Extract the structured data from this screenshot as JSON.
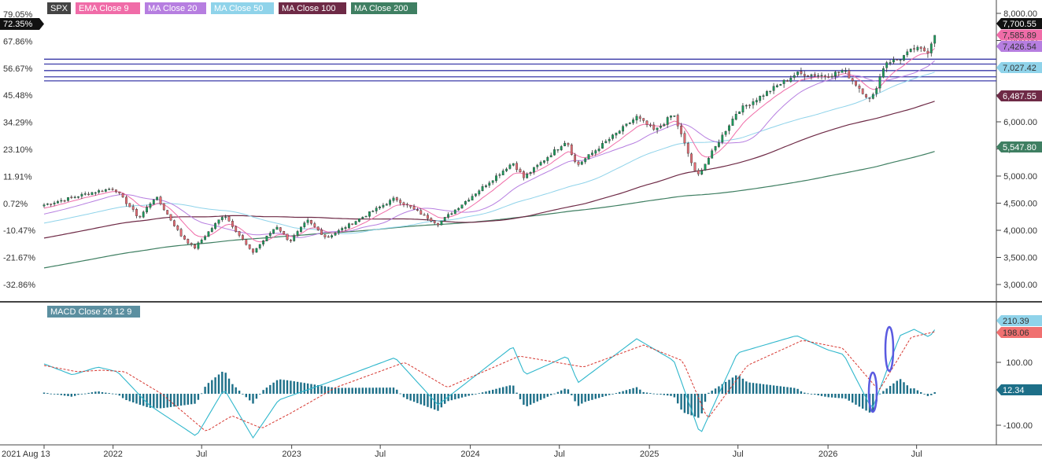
{
  "legend": {
    "main": [
      {
        "label": "SPX",
        "color": "#444444",
        "text_color": "#ffffff"
      },
      {
        "label": "EMA  Close 9",
        "color": "#f06ca8",
        "text_color": "#ffffff"
      },
      {
        "label": "MA  Close 20",
        "color": "#b67ee0",
        "text_color": "#ffffff"
      },
      {
        "label": "MA  Close 50",
        "color": "#8fd3ea",
        "text_color": "#ffffff"
      },
      {
        "label": "MA  Close 100",
        "color": "#6e2a46",
        "text_color": "#ffffff"
      },
      {
        "label": "MA  Close 200",
        "color": "#3f7f62",
        "text_color": "#ffffff"
      }
    ],
    "macd": {
      "label": "MACD  Close 26 12 9",
      "color": "#5b8fa0",
      "text_color": "#ffffff"
    }
  },
  "colors": {
    "up": "#1a9c5c",
    "down": "#e56b73",
    "wick": "#333333",
    "hline": "#3a3aa8",
    "ellipse": "#5a5ae0",
    "macd_line": "#2fb7cc",
    "signal_line": "#d6362f",
    "hist": "#1d6f88",
    "ema9": "#f06ca8",
    "ma20": "#b67ee0",
    "ma50": "#8fd3ea",
    "ma100": "#6e2a46",
    "ma200": "#3f7f62"
  },
  "chart_data": [
    {
      "type": "candlestick",
      "title": "SPX",
      "x_start": "2021-08-13",
      "x_end": "2026-08-14",
      "x_ticks": [
        {
          "date": "2021-08-13",
          "label": "2021 Aug 13"
        },
        {
          "date": "2022-01-01",
          "label": "2022"
        },
        {
          "date": "2022-07-01",
          "label": "Jul"
        },
        {
          "date": "2023-01-01",
          "label": "2023"
        },
        {
          "date": "2023-07-01",
          "label": "Jul"
        },
        {
          "date": "2024-01-01",
          "label": "2024"
        },
        {
          "date": "2024-07-01",
          "label": "Jul"
        },
        {
          "date": "2025-01-01",
          "label": "2025"
        },
        {
          "date": "2025-07-01",
          "label": "Jul"
        },
        {
          "date": "2026-01-01",
          "label": "2026"
        },
        {
          "date": "2026-07-01",
          "label": "Jul"
        }
      ],
      "y_ticks_right": [
        "3,000.00",
        "3,500.00",
        "4,000.00",
        "4,500.00",
        "5,000.00",
        "5,500.00",
        "6,000.00",
        "6,500.00",
        "7,000.00",
        "7,500.00",
        "8,000.00"
      ],
      "y_ticks_left": [
        "79.05%",
        "67.86%",
        "56.67%",
        "45.48%",
        "34.29%",
        "23.10%",
        "11.91%",
        "0.72%",
        "-10.47%",
        "-21.67%",
        "-32.86%"
      ],
      "y_left_current": "72.35%",
      "ylim": [
        2700,
        8050
      ],
      "horizontal_levels": [
        7155,
        7065,
        6945,
        6830,
        6755
      ],
      "last_values": {
        "price": "7,700.55",
        "ema9": "7,585.89",
        "ma20": "7,426.54",
        "ma50": "7,027.42",
        "ma100": "6,487.55",
        "ma200": "5,547.80"
      },
      "price_anchors": [
        [
          "2021-08-13",
          4470
        ],
        [
          "2021-11-15",
          4690
        ],
        [
          "2022-01-03",
          4780
        ],
        [
          "2022-02-23",
          4230
        ],
        [
          "2022-03-29",
          4630
        ],
        [
          "2022-05-20",
          3900
        ],
        [
          "2022-06-16",
          3670
        ],
        [
          "2022-08-16",
          4300
        ],
        [
          "2022-10-12",
          3580
        ],
        [
          "2022-12-01",
          4080
        ],
        [
          "2022-12-28",
          3790
        ],
        [
          "2023-02-02",
          4180
        ],
        [
          "2023-03-13",
          3860
        ],
        [
          "2023-07-31",
          4590
        ],
        [
          "2023-10-27",
          4120
        ],
        [
          "2024-03-28",
          5250
        ],
        [
          "2024-04-19",
          4970
        ],
        [
          "2024-07-16",
          5660
        ],
        [
          "2024-08-05",
          5190
        ],
        [
          "2024-12-06",
          6090
        ],
        [
          "2025-01-13",
          5830
        ],
        [
          "2025-02-19",
          6150
        ],
        [
          "2025-04-08",
          4980
        ],
        [
          "2025-06-30",
          6200
        ],
        [
          "2025-10-29",
          6890
        ],
        [
          "2025-12-31",
          6850
        ],
        [
          "2026-02-02",
          6950
        ],
        [
          "2026-03-30",
          6380
        ],
        [
          "2026-04-28",
          7100
        ],
        [
          "2026-05-26",
          7150
        ],
        [
          "2026-06-26",
          7350
        ],
        [
          "2026-07-24",
          7300
        ],
        [
          "2026-08-10",
          7700
        ]
      ]
    },
    {
      "type": "macd",
      "title": "MACD  Close 26 12 9",
      "ylim": [
        -160,
        280
      ],
      "y_ticks_right": [
        "-100.00",
        "100.00"
      ],
      "last_values": {
        "macd": "210.39",
        "signal": "198.06",
        "histogram": "12.34"
      },
      "macd_anchors": [
        [
          "2021-08-13",
          95
        ],
        [
          "2021-10-10",
          60
        ],
        [
          "2021-12-01",
          85
        ],
        [
          "2022-01-10",
          70
        ],
        [
          "2022-03-15",
          -35
        ],
        [
          "2022-06-20",
          -135
        ],
        [
          "2022-08-16",
          15
        ],
        [
          "2022-10-14",
          -140
        ],
        [
          "2022-12-05",
          -20
        ],
        [
          "2023-03-15",
          35
        ],
        [
          "2023-07-31",
          115
        ],
        [
          "2023-10-27",
          -35
        ],
        [
          "2024-03-28",
          150
        ],
        [
          "2024-04-22",
          60
        ],
        [
          "2024-07-17",
          120
        ],
        [
          "2024-08-08",
          35
        ],
        [
          "2024-12-06",
          175
        ],
        [
          "2025-02-20",
          105
        ],
        [
          "2025-04-15",
          -130
        ],
        [
          "2025-06-30",
          130
        ],
        [
          "2025-10-29",
          185
        ],
        [
          "2025-12-31",
          140
        ],
        [
          "2026-02-02",
          125
        ],
        [
          "2026-04-01",
          -50
        ],
        [
          "2026-05-28",
          185
        ],
        [
          "2026-06-26",
          205
        ],
        [
          "2026-07-27",
          180
        ],
        [
          "2026-08-10",
          210
        ]
      ],
      "signal_anchors": [
        [
          "2021-08-13",
          90
        ],
        [
          "2021-10-20",
          70
        ],
        [
          "2021-12-10",
          75
        ],
        [
          "2022-01-25",
          70
        ],
        [
          "2022-04-10",
          0
        ],
        [
          "2022-07-10",
          -120
        ],
        [
          "2022-09-01",
          -70
        ],
        [
          "2022-11-01",
          -110
        ],
        [
          "2023-01-01",
          -60
        ],
        [
          "2023-04-01",
          20
        ],
        [
          "2023-08-20",
          100
        ],
        [
          "2023-11-15",
          20
        ],
        [
          "2024-04-10",
          120
        ],
        [
          "2024-08-20",
          85
        ],
        [
          "2024-12-20",
          155
        ],
        [
          "2025-03-10",
          105
        ],
        [
          "2025-04-30",
          -80
        ],
        [
          "2025-07-20",
          90
        ],
        [
          "2025-11-10",
          170
        ],
        [
          "2026-01-31",
          145
        ],
        [
          "2026-04-15",
          10
        ],
        [
          "2026-06-20",
          180
        ],
        [
          "2026-08-10",
          198
        ]
      ]
    }
  ]
}
